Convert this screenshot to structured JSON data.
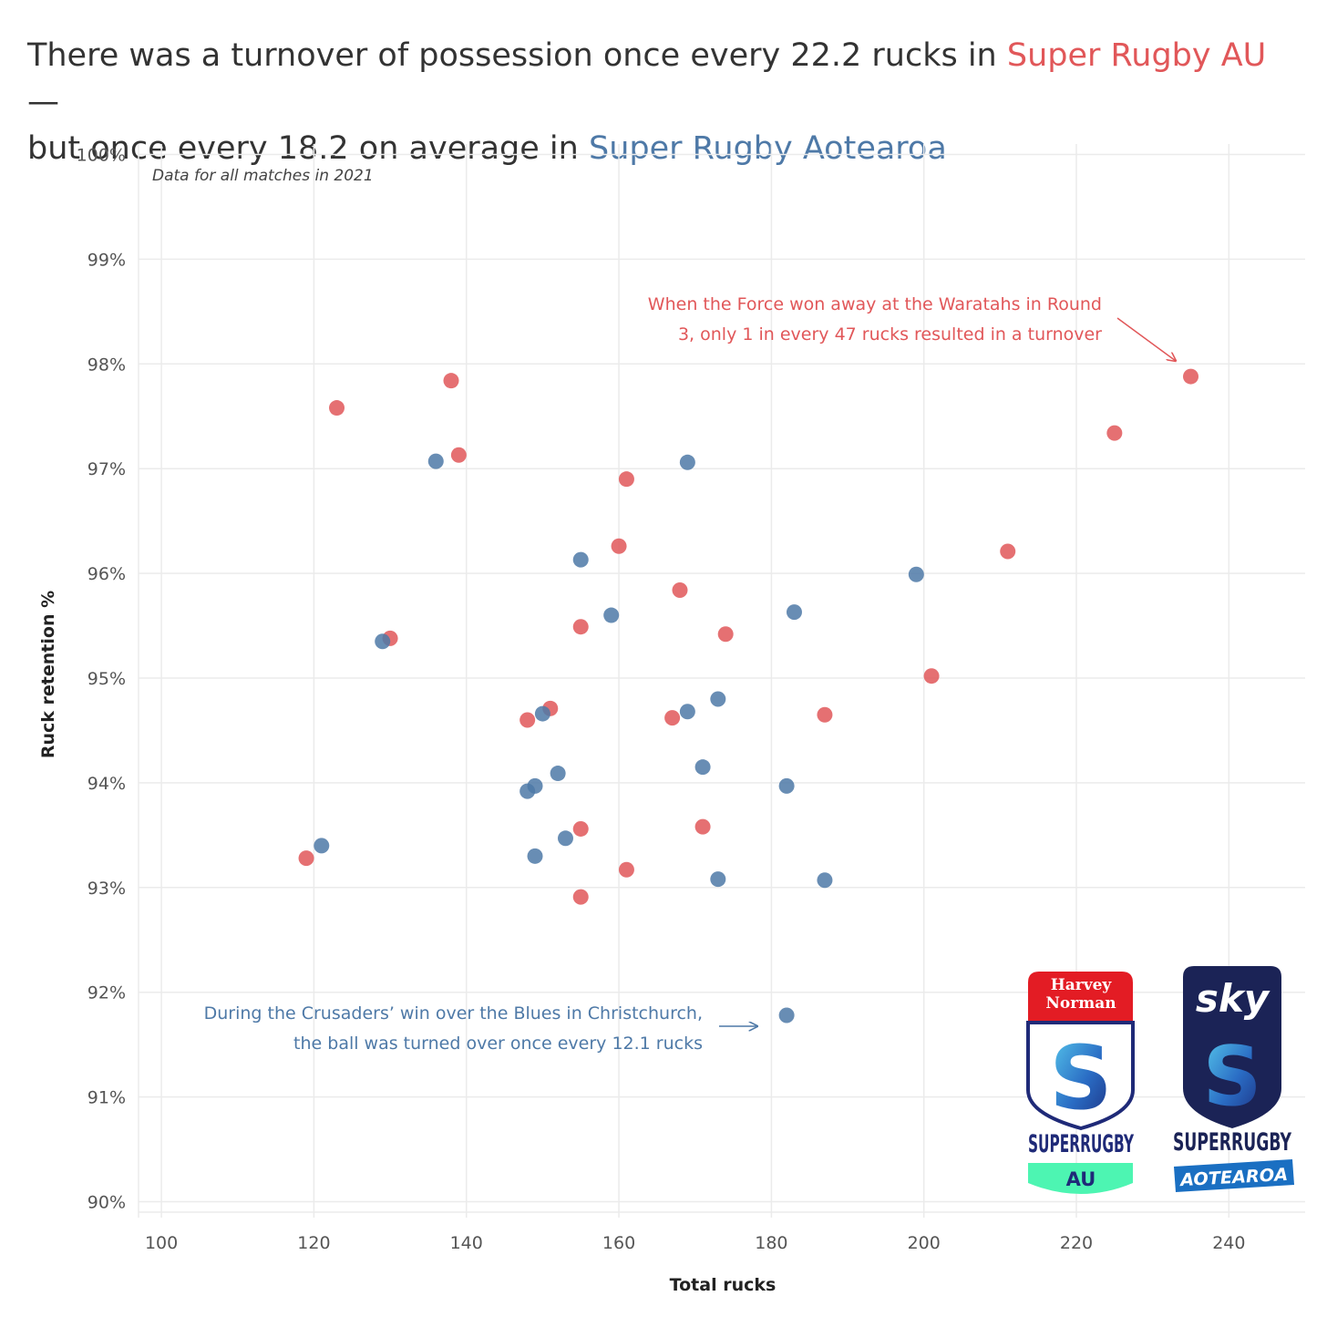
{
  "title": {
    "part1": "There was a turnover of possession once every 22.2 rucks in ",
    "au_name": "Super Rugby AU",
    "part2": " —",
    "part3": "but once every 18.2 on average in ",
    "aotearoa_name": "Super Rugby Aotearoa"
  },
  "note": "Data for all matches in 2021",
  "annotations": {
    "au": {
      "line1": "When the Force won away at the Waratahs in Round",
      "line2": "3, only 1 in every 47 rucks resulted in a turnover"
    },
    "aotearoa": {
      "line1": "During the Crusaders’ win over the Blues in Christchurch,",
      "line2": "the ball was turned over once every 12.1 rucks"
    }
  },
  "logos": {
    "au": {
      "sponsor_line1": "Harvey",
      "sponsor_line2": "Norman",
      "wordmark": "SUPERRUGBY",
      "tag": "AU"
    },
    "aotearoa": {
      "sponsor": "sky",
      "wordmark": "SUPERRUGBY",
      "tag": "AOTEAROA"
    }
  },
  "colors": {
    "au": "#e15759",
    "aotearoa": "#4e79a7",
    "grid": "#ebebeb"
  },
  "chart_data": {
    "type": "scatter",
    "xlabel": "Total rucks",
    "ylabel": "Ruck retention %",
    "xlim": [
      97,
      250
    ],
    "ylim": [
      89.9,
      100.1
    ],
    "xticks": [
      100,
      120,
      140,
      160,
      180,
      200,
      220,
      240
    ],
    "xtick_labels": [
      "100",
      "120",
      "140",
      "160",
      "180",
      "200",
      "220",
      "240"
    ],
    "yticks": [
      90,
      91,
      92,
      93,
      94,
      95,
      96,
      97,
      98,
      99,
      100
    ],
    "ytick_labels": [
      "90%",
      "91%",
      "92%",
      "93%",
      "94%",
      "95%",
      "96%",
      "97%",
      "98%",
      "99%",
      "100%"
    ],
    "grid": true,
    "series": [
      {
        "name": "Super Rugby AU",
        "color": "#e15759",
        "points": [
          [
            123,
            97.58
          ],
          [
            138,
            97.84
          ],
          [
            139,
            97.13
          ],
          [
            161,
            96.9
          ],
          [
            160,
            96.26
          ],
          [
            168,
            95.84
          ],
          [
            155,
            95.49
          ],
          [
            174,
            95.42
          ],
          [
            130,
            95.38
          ],
          [
            151,
            94.71
          ],
          [
            148,
            94.6
          ],
          [
            167,
            94.62
          ],
          [
            187,
            94.65
          ],
          [
            201,
            95.02
          ],
          [
            211,
            96.21
          ],
          [
            225,
            97.34
          ],
          [
            235,
            97.88
          ],
          [
            155,
            93.56
          ],
          [
            171,
            93.58
          ],
          [
            161,
            93.17
          ],
          [
            155,
            92.91
          ],
          [
            119,
            93.28
          ]
        ]
      },
      {
        "name": "Super Rugby Aotearoa",
        "color": "#4e79a7",
        "points": [
          [
            136,
            97.07
          ],
          [
            169,
            97.06
          ],
          [
            155,
            96.13
          ],
          [
            159,
            95.6
          ],
          [
            129,
            95.35
          ],
          [
            183,
            95.63
          ],
          [
            199,
            95.99
          ],
          [
            150,
            94.66
          ],
          [
            169,
            94.68
          ],
          [
            173,
            94.8
          ],
          [
            171,
            94.15
          ],
          [
            152,
            94.09
          ],
          [
            149,
            93.97
          ],
          [
            148,
            93.92
          ],
          [
            182,
            93.97
          ],
          [
            121,
            93.4
          ],
          [
            153,
            93.47
          ],
          [
            149,
            93.3
          ],
          [
            173,
            93.08
          ],
          [
            187,
            93.07
          ],
          [
            182,
            91.78
          ]
        ]
      }
    ]
  }
}
